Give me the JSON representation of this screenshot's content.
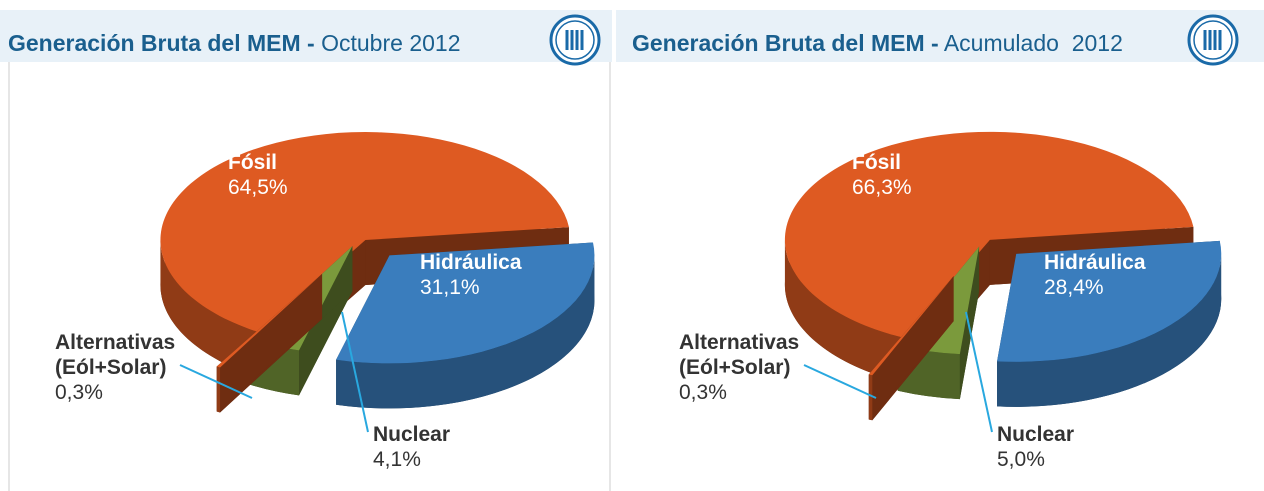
{
  "chart_data": [
    {
      "type": "pie3d",
      "title": "Generación Bruta del MEM -",
      "subtitle": "Octubre 2012",
      "categories": [
        "Fósil",
        "Hidráulica",
        "Nuclear",
        "Alternativas (Eól+Solar)"
      ],
      "values": [
        64.5,
        31.1,
        4.1,
        0.3
      ],
      "value_labels": [
        "64,5%",
        "31,1%",
        "4,1%",
        "0,3%"
      ],
      "colors": [
        "#de5a22",
        "#3a7dbd",
        "#7b9a3c",
        "#de5a22"
      ]
    },
    {
      "type": "pie3d",
      "title": "Generación Bruta del MEM -",
      "subtitle": "Acumulado  2012",
      "categories": [
        "Fósil",
        "Hidráulica",
        "Nuclear",
        "Alternativas (Eól+Solar)"
      ],
      "values": [
        66.3,
        28.4,
        5.0,
        0.3
      ],
      "value_labels": [
        "66,3%",
        "28,4%",
        "5,0%",
        "0,3%"
      ],
      "colors": [
        "#de5a22",
        "#3a7dbd",
        "#7b9a3c",
        "#de5a22"
      ]
    }
  ]
}
